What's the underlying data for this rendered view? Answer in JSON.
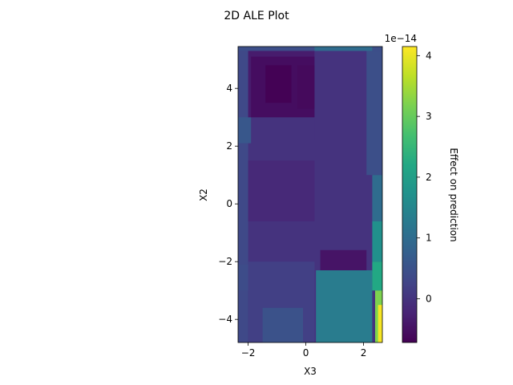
{
  "chart_data": {
    "type": "heatmap",
    "title": "2D ALE Plot",
    "xlabel": "X3",
    "ylabel": "X2",
    "xlim": [
      -2.35,
      2.65
    ],
    "ylim": [
      -4.8,
      5.45
    ],
    "x_ticks": [
      -2,
      0,
      2
    ],
    "y_ticks": [
      -4,
      -2,
      0,
      2,
      4
    ],
    "x_tick_labels": [
      "−2",
      "0",
      "2"
    ],
    "y_tick_labels": [
      "−4",
      "−2",
      "0",
      "2",
      "4"
    ],
    "colorbar": {
      "label": "Effect on prediction",
      "scale_label": "1e−14",
      "min": -0.72,
      "max": 4.15,
      "ticks": [
        0,
        1,
        2,
        3,
        4
      ],
      "tick_labels": [
        "0",
        "1",
        "2",
        "3",
        "4"
      ],
      "colormap": "viridis"
    },
    "regions": [
      {
        "x": [
          -2.35,
          2.65
        ],
        "y": [
          -4.8,
          5.45
        ],
        "value": 0.0
      },
      {
        "x": [
          -2.35,
          -2.0
        ],
        "y": [
          -4.8,
          5.3
        ],
        "value": 0.35
      },
      {
        "x": [
          -2.35,
          -1.9
        ],
        "y": [
          2.1,
          3.0
        ],
        "value": 0.6
      },
      {
        "x": [
          -2.35,
          -1.8
        ],
        "y": [
          -3.0,
          -2.1
        ],
        "value": 0.4
      },
      {
        "x": [
          -2.0,
          0.3
        ],
        "y": [
          -4.8,
          -2.0
        ],
        "value": 0.2
      },
      {
        "x": [
          -1.5,
          -0.1
        ],
        "y": [
          -4.8,
          -3.6
        ],
        "value": 0.5
      },
      {
        "x": [
          0.35,
          2.3
        ],
        "y": [
          -4.8,
          -2.3
        ],
        "value": 1.3
      },
      {
        "x": [
          0.5,
          2.1
        ],
        "y": [
          -2.3,
          -1.6
        ],
        "value": -0.45
      },
      {
        "x": [
          -2.0,
          0.3
        ],
        "y": [
          -0.6,
          1.5
        ],
        "value": -0.15
      },
      {
        "x": [
          -2.0,
          0.3
        ],
        "y": [
          3.0,
          5.3
        ],
        "value": -0.35
      },
      {
        "x": [
          -1.9,
          0.3
        ],
        "y": [
          3.0,
          5.1
        ],
        "value": -0.55
      },
      {
        "x": [
          -1.4,
          -0.5
        ],
        "y": [
          3.5,
          4.8
        ],
        "value": -0.7
      },
      {
        "x": [
          -0.3,
          0.3
        ],
        "y": [
          3.3,
          4.8
        ],
        "value": -0.6
      },
      {
        "x": [
          0.3,
          2.2
        ],
        "y": [
          2.2,
          5.3
        ],
        "value": 0.0
      },
      {
        "x": [
          -2.35,
          2.65
        ],
        "y": [
          5.3,
          5.45
        ],
        "value": 0.45
      },
      {
        "x": [
          0.3,
          2.3
        ],
        "y": [
          5.3,
          5.45
        ],
        "value": 1.0
      },
      {
        "x": [
          2.1,
          2.65
        ],
        "y": [
          1.0,
          5.3
        ],
        "value": 0.45
      },
      {
        "x": [
          2.3,
          2.65
        ],
        "y": [
          -0.6,
          1.0
        ],
        "value": 1.0
      },
      {
        "x": [
          2.3,
          2.65
        ],
        "y": [
          -2.0,
          -0.6
        ],
        "value": 1.7
      },
      {
        "x": [
          2.3,
          2.65
        ],
        "y": [
          -3.0,
          -2.0
        ],
        "value": 2.2
      },
      {
        "x": [
          2.4,
          2.65
        ],
        "y": [
          -4.8,
          -3.0
        ],
        "value": 3.2
      },
      {
        "x": [
          2.5,
          2.65
        ],
        "y": [
          -4.8,
          -3.5
        ],
        "value": 4.1
      }
    ]
  }
}
